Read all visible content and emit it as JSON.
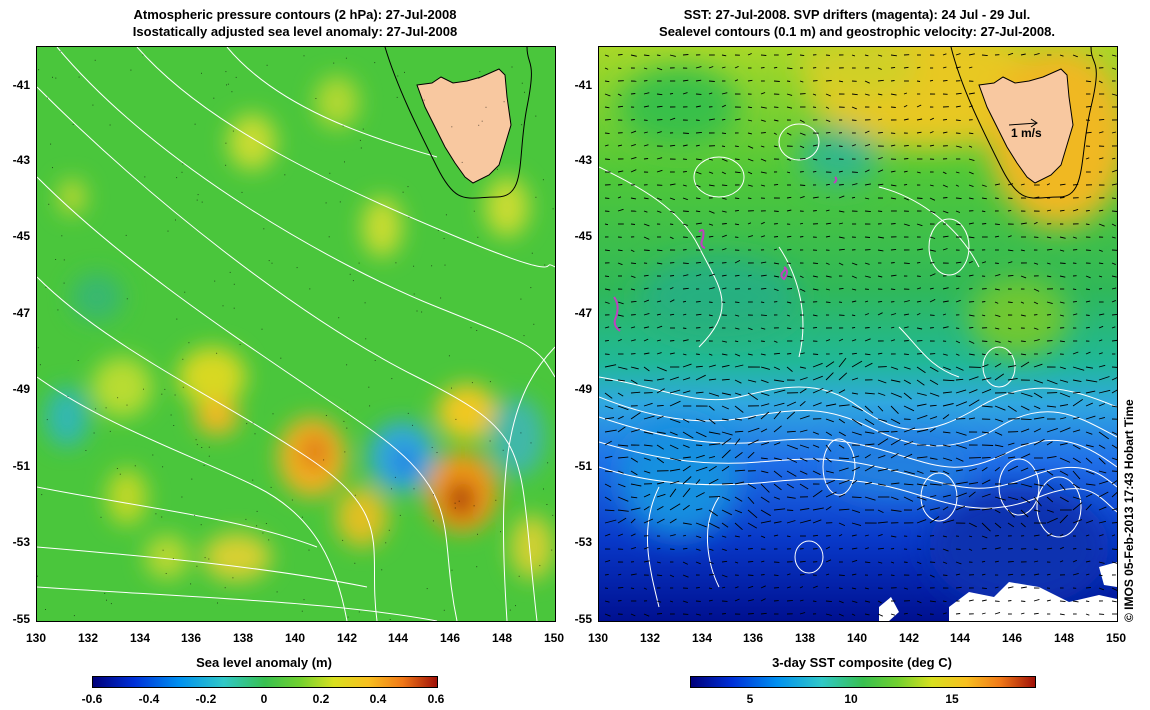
{
  "left_panel": {
    "title_line1": "Atmospheric pressure contours (2 hPa): 27-Jul-2008",
    "title_line2": "Isostatically adjusted sea level anomaly: 27-Jul-2008",
    "y_ticks": [
      "-41",
      "-43",
      "-45",
      "-47",
      "-49",
      "-51",
      "-53",
      "-55"
    ],
    "x_ticks": [
      "130",
      "132",
      "134",
      "136",
      "138",
      "140",
      "142",
      "144",
      "146",
      "148",
      "150"
    ],
    "colorbar_label": "Sea level anomaly (m)",
    "colorbar_ticks": [
      "-0.6",
      "-0.4",
      "-0.2",
      "0",
      "0.2",
      "0.4",
      "0.6"
    ],
    "colorbar_range": [
      -0.6,
      0.6
    ]
  },
  "right_panel": {
    "title_line1": "SST: 27-Jul-2008. SVP drifters (magenta): 24 Jul - 29 Jul.",
    "title_line2": "Sealevel contours (0.1 m) and geostrophic velocity: 27-Jul-2008.",
    "y_ticks": [
      "-41",
      "-43",
      "-45",
      "-47",
      "-49",
      "-51",
      "-53",
      "-55"
    ],
    "x_ticks": [
      "130",
      "132",
      "134",
      "136",
      "138",
      "140",
      "142",
      "144",
      "146",
      "148",
      "150"
    ],
    "colorbar_label": "3-day SST composite (deg C)",
    "colorbar_ticks": [
      "5",
      "10",
      "15"
    ],
    "colorbar_range": [
      2,
      19
    ],
    "velocity_scale_label": "1 m/s"
  },
  "credit": "© IMOS 05-Feb-2013 17:43 Hobart Time",
  "map_extent": {
    "lon": [
      130,
      150
    ],
    "lat": [
      -55,
      -40
    ]
  },
  "colors": {
    "land": "#f8c8a0",
    "contour": "#ffffff",
    "coast": "#000000",
    "drifter": "#c040c0"
  }
}
